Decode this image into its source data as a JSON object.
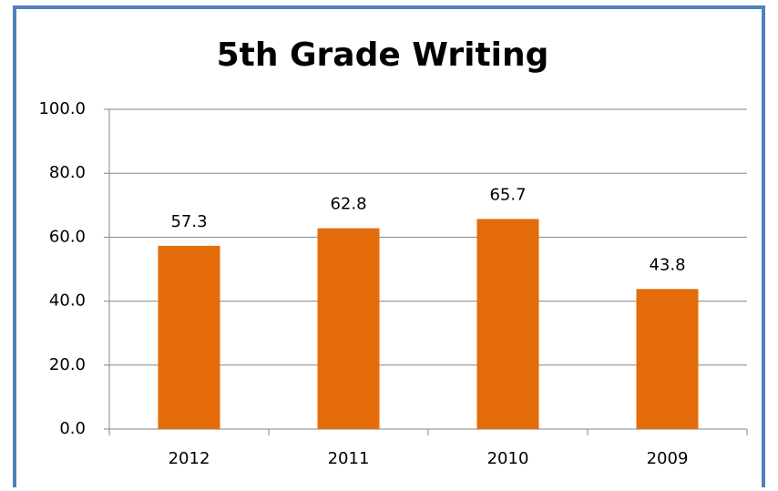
{
  "chart_data": {
    "type": "bar",
    "title": "5th Grade Writing",
    "categories": [
      "2012",
      "2011",
      "2010",
      "2009"
    ],
    "values": [
      57.3,
      62.8,
      65.7,
      43.8
    ],
    "color": "#e46c0a",
    "ylim": [
      0,
      100
    ],
    "yticks": [
      {
        "value": 0,
        "label": "0.0"
      },
      {
        "value": 20,
        "label": "20.0"
      },
      {
        "value": 40,
        "label": "40.0"
      },
      {
        "value": 60,
        "label": "60.0"
      },
      {
        "value": 80,
        "label": "80.0"
      },
      {
        "value": 100,
        "label": "100.0"
      }
    ],
    "grid": true
  }
}
